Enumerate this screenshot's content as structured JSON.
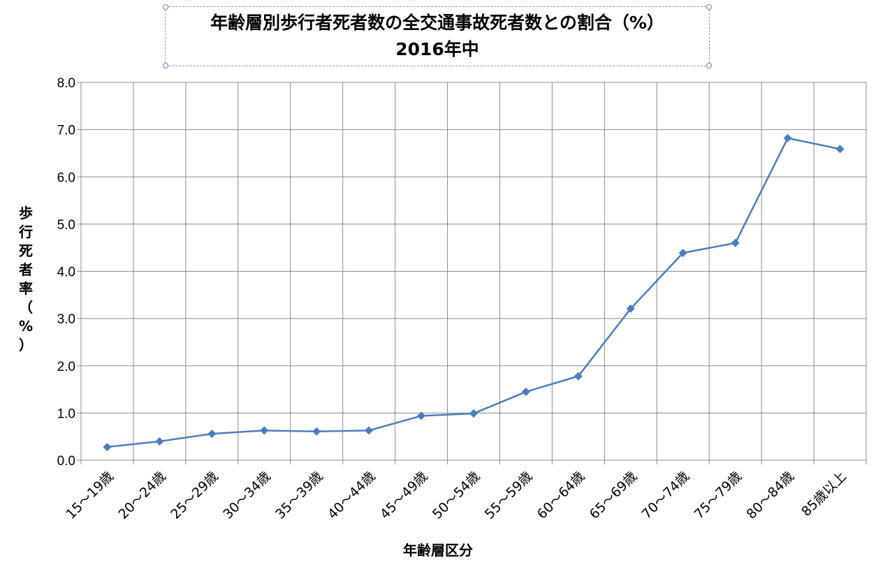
{
  "title": {
    "line1": "年齢層別歩行者死者数の全交通事故死者数との割合（%）",
    "line2": "2016年中"
  },
  "chart_data": {
    "type": "line",
    "title": "年齢層別歩行者死者数の全交通事故死者数との割合（%） 2016年中",
    "xlabel": "年齢層区分",
    "ylabel": "歩行死者率（%）",
    "ylim": [
      0,
      8
    ],
    "yticks": [
      "0.0",
      "1.0",
      "2.0",
      "3.0",
      "4.0",
      "5.0",
      "6.0",
      "7.0",
      "8.0"
    ],
    "grid": true,
    "categories": [
      "15～19歳",
      "20～24歳",
      "25～29歳",
      "30～34歳",
      "35～39歳",
      "40～44歳",
      "45～49歳",
      "50～54歳",
      "55～59歳",
      "60～64歳",
      "65～69歳",
      "70～74歳",
      "75～79歳",
      "80～84歳",
      "85歳以上"
    ],
    "series": [
      {
        "color": "#4a7ebb",
        "values": [
          0.28,
          0.4,
          0.56,
          0.63,
          0.61,
          0.63,
          0.94,
          0.99,
          1.45,
          1.78,
          3.21,
          4.39,
          4.6,
          6.82,
          6.59
        ]
      }
    ]
  }
}
